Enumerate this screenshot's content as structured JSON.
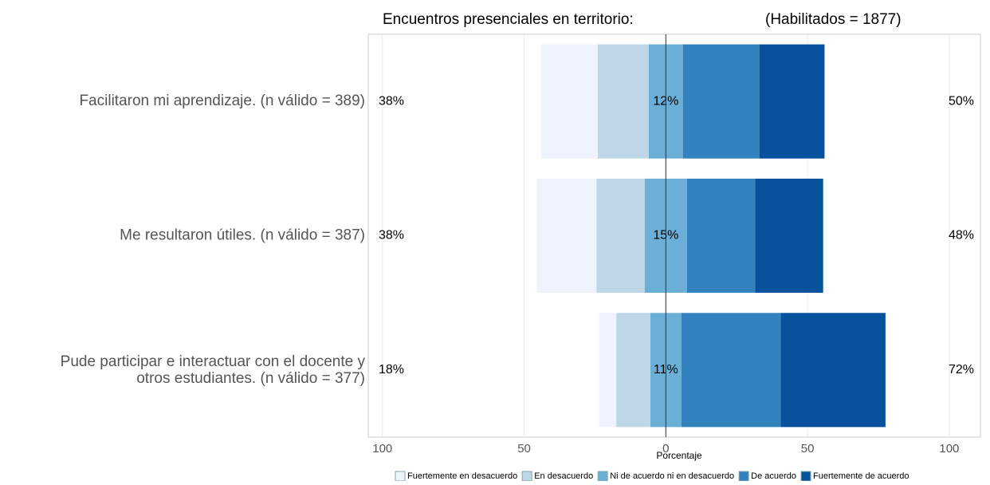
{
  "chart_data": {
    "type": "diverging-bar",
    "title": "Encuentros presenciales en territorio:",
    "subtitle": "(Habilitados = 1877)",
    "xlabel": "Porcentaje",
    "categories": [
      [
        "Facilitaron mi aprendizaje. (n válido = 389)"
      ],
      [
        "Me resultaron útiles. (n válido = 387)"
      ],
      [
        "Pude participar e interactuar con el docente y",
        "otros estudiantes. (n válido = 377)"
      ]
    ],
    "series": [
      {
        "name": "Fuertemente en desacuerdo",
        "color": "#eff3ff",
        "side": "left",
        "values": [
          20,
          21,
          6
        ]
      },
      {
        "name": "En desacuerdo",
        "color": "#bdd7e7",
        "side": "left",
        "values": [
          18,
          17,
          12
        ]
      },
      {
        "name": "Ni de acuerdo ni en desacuerdo",
        "color": "#6baed6",
        "side": "center",
        "values": [
          12,
          15,
          11
        ]
      },
      {
        "name": "De acuerdo",
        "color": "#3182bd",
        "side": "right",
        "values": [
          27,
          24,
          35
        ]
      },
      {
        "name": "Fuertemente de acuerdo",
        "color": "#08519c",
        "side": "right",
        "values": [
          23,
          24,
          37
        ]
      }
    ],
    "left_labels": [
      "38%",
      "38%",
      "18%"
    ],
    "center_labels": [
      "12%",
      "15%",
      "11%"
    ],
    "right_labels": [
      "50%",
      "48%",
      "72%"
    ],
    "xlim": [
      -105,
      111
    ],
    "xticks": [
      {
        "value": -100,
        "label": "100"
      },
      {
        "value": -50,
        "label": "50"
      },
      0,
      50,
      100
    ],
    "grid": true
  }
}
